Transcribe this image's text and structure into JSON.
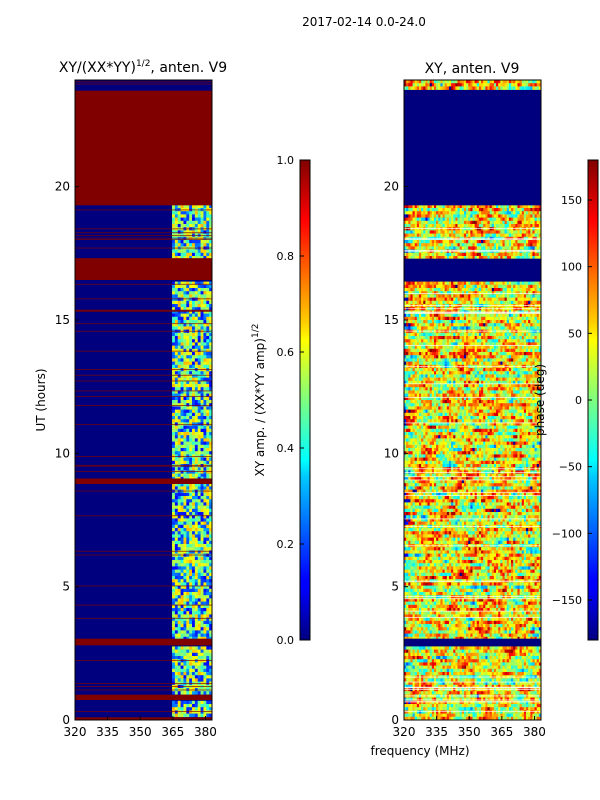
{
  "figure_title": "2017-02-14 0.0-24.0",
  "chart_data": [
    {
      "type": "heatmap",
      "title_main": "XY/(XX*YY)",
      "title_sup": "1/2",
      "title_rest": ", anten. V9",
      "xlabel": "",
      "ylabel": "UT (hours)",
      "xlim": [
        320,
        383
      ],
      "ylim": [
        0,
        24
      ],
      "x_ticks": [
        "320",
        "335",
        "350",
        "365",
        "380"
      ],
      "x_tick_values": [
        320,
        335,
        350,
        365,
        380
      ],
      "y_ticks": [
        "0",
        "5",
        "10",
        "15",
        "20"
      ],
      "y_tick_values": [
        0,
        5,
        10,
        15,
        20
      ],
      "colorbar": {
        "label_main": "XY amp. / (XX*YY amp)",
        "label_sup": "1/2",
        "range": [
          0,
          1
        ],
        "ticks": [
          "0.0",
          "0.2",
          "0.4",
          "0.6",
          "0.8",
          "1.0"
        ],
        "tick_values": [
          0,
          0.2,
          0.4,
          0.6,
          0.8,
          1.0
        ]
      },
      "solid_bands_hours": [
        [
          19.3,
          23.6
        ],
        [
          16.5,
          17.3
        ],
        [
          8.85,
          9.05
        ],
        [
          2.8,
          3.05
        ],
        [
          0.75,
          0.95
        ],
        [
          0,
          0.1
        ]
      ],
      "band_value": 1.0,
      "active_freq_range": [
        364,
        383
      ]
    },
    {
      "type": "heatmap",
      "title_main": "XY, anten. V9",
      "xlabel": "frequency (MHz)",
      "ylabel": "",
      "xlim": [
        320,
        383
      ],
      "ylim": [
        0,
        24
      ],
      "x_ticks": [
        "320",
        "335",
        "350",
        "365",
        "380"
      ],
      "x_tick_values": [
        320,
        335,
        350,
        365,
        380
      ],
      "y_ticks": [
        "0",
        "5",
        "10",
        "15",
        "20"
      ],
      "y_tick_values": [
        0,
        5,
        10,
        15,
        20
      ],
      "colorbar": {
        "label_main": "phase (deg)",
        "range": [
          -180,
          180
        ],
        "ticks": [
          "−150",
          "−100",
          "−50",
          "0",
          "50",
          "100",
          "150"
        ],
        "tick_values": [
          -150,
          -100,
          -50,
          0,
          50,
          100,
          150
        ]
      },
      "solid_bands_hours": [
        [
          19.3,
          23.6
        ],
        [
          16.5,
          17.3
        ],
        [
          2.8,
          3.05
        ]
      ],
      "band_value": -180
    }
  ],
  "colors": {
    "dark_red": "#800000",
    "dark_blue": "#00007f"
  }
}
